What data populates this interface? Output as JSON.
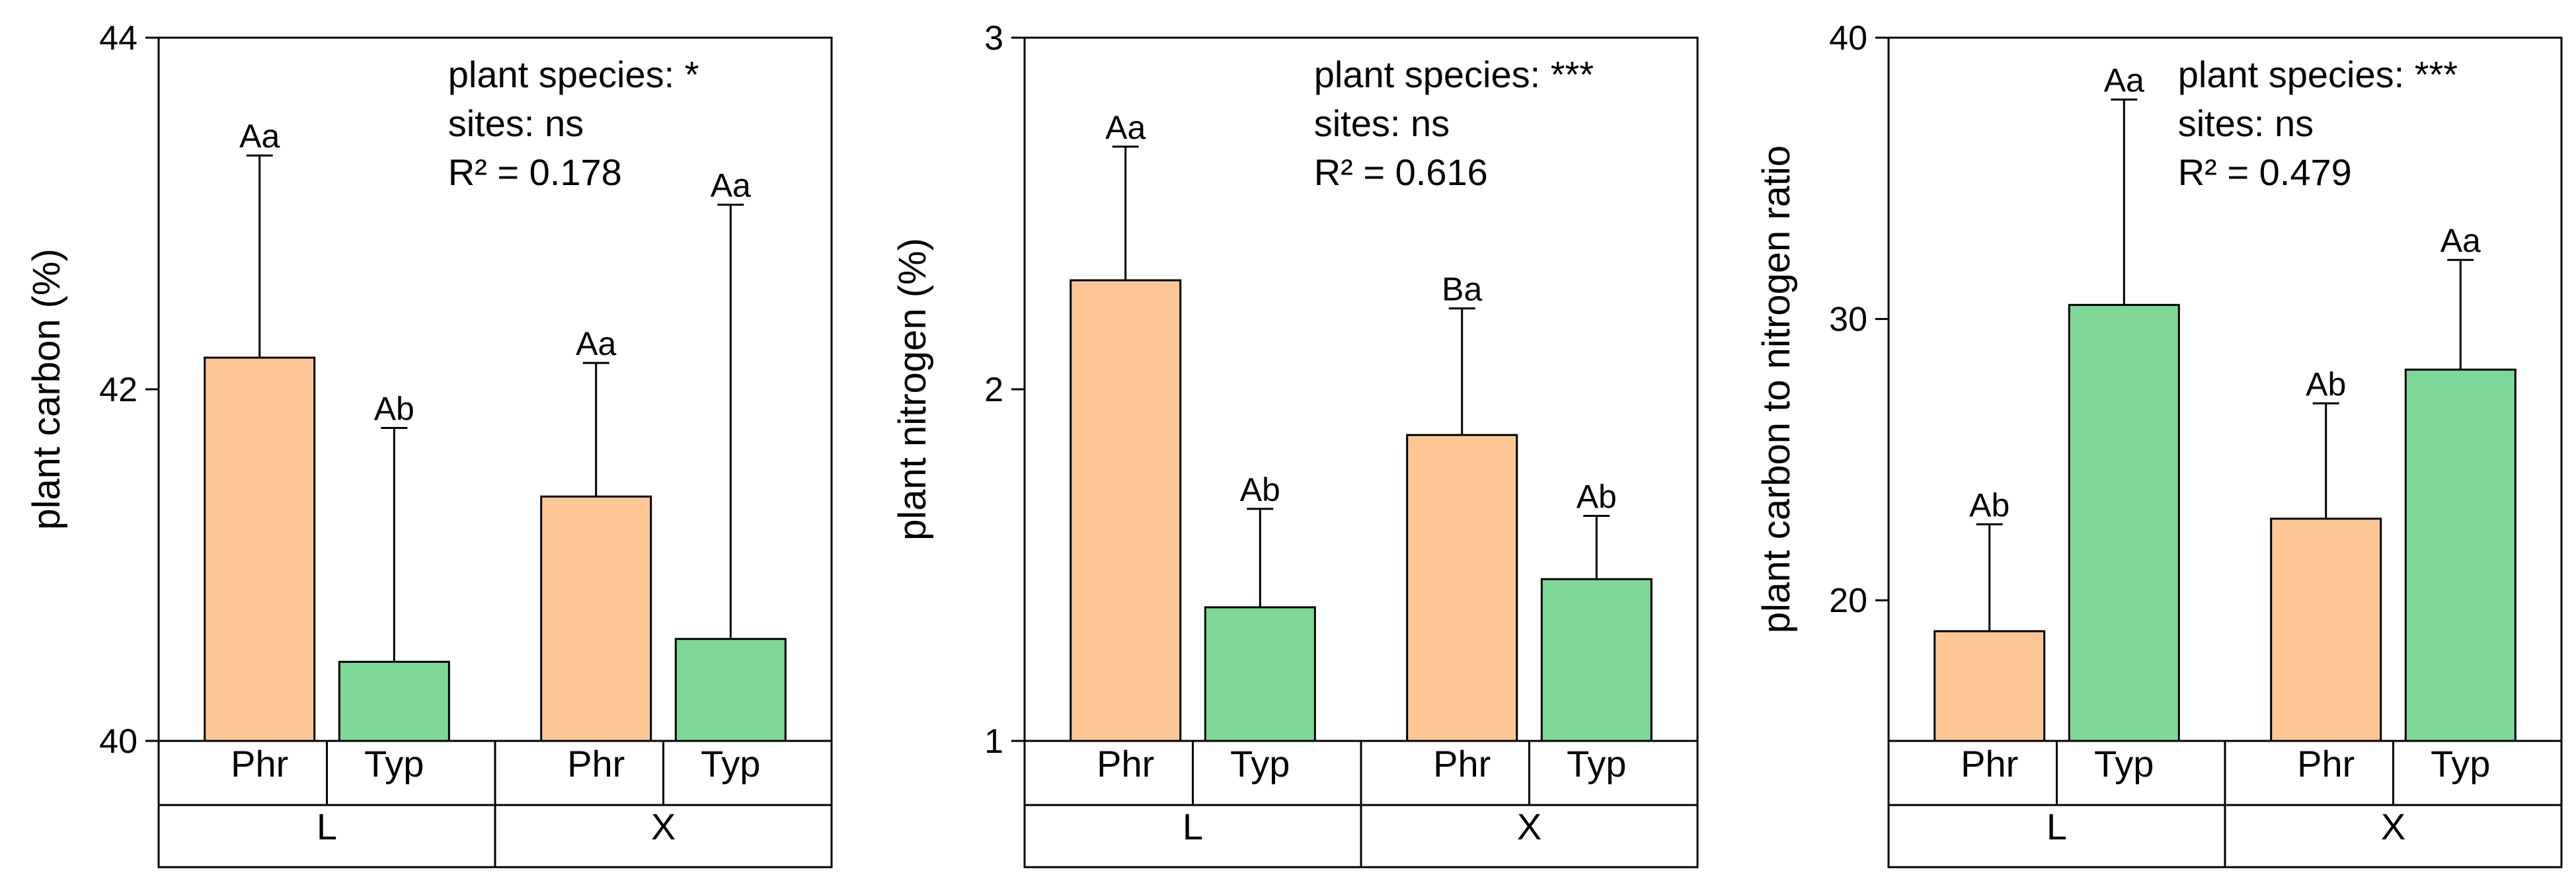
{
  "chart_data": [
    {
      "type": "bar",
      "ylabel": "plant carbon (%)",
      "ylim": [
        40,
        44
      ],
      "yticks": [
        40,
        42,
        44
      ],
      "groups": [
        "L",
        "X"
      ],
      "species": [
        "Phr",
        "Typ"
      ],
      "bars": [
        {
          "site": "L",
          "species": "Phr",
          "value": 42.18,
          "err": 1.15,
          "label": "Aa"
        },
        {
          "site": "L",
          "species": "Typ",
          "value": 40.45,
          "err": 1.33,
          "label": "Ab"
        },
        {
          "site": "X",
          "species": "Phr",
          "value": 41.39,
          "err": 0.76,
          "label": "Aa"
        },
        {
          "site": "X",
          "species": "Typ",
          "value": 40.58,
          "err": 2.47,
          "label": "Aa"
        }
      ],
      "annotation": [
        "plant species: *",
        "sites: ns",
        "R² = 0.178"
      ]
    },
    {
      "type": "bar",
      "ylabel": "plant nitrogen (%)",
      "ylim": [
        1,
        3
      ],
      "yticks": [
        1,
        2,
        3
      ],
      "groups": [
        "L",
        "X"
      ],
      "species": [
        "Phr",
        "Typ"
      ],
      "bars": [
        {
          "site": "L",
          "species": "Phr",
          "value": 2.31,
          "err": 0.38,
          "label": "Aa"
        },
        {
          "site": "L",
          "species": "Typ",
          "value": 1.38,
          "err": 0.28,
          "label": "Ab"
        },
        {
          "site": "X",
          "species": "Phr",
          "value": 1.87,
          "err": 0.36,
          "label": "Ba"
        },
        {
          "site": "X",
          "species": "Typ",
          "value": 1.46,
          "err": 0.18,
          "label": "Ab"
        }
      ],
      "annotation": [
        "plant species: ***",
        "sites: ns",
        "R² = 0.616"
      ]
    },
    {
      "type": "bar",
      "ylabel": "plant carbon to nitrogen ratio",
      "ylim": [
        15,
        40
      ],
      "yticks": [
        20,
        30,
        40
      ],
      "groups": [
        "L",
        "X"
      ],
      "species": [
        "Phr",
        "Typ"
      ],
      "bars": [
        {
          "site": "L",
          "species": "Phr",
          "value": 18.9,
          "err": 3.8,
          "label": "Ab"
        },
        {
          "site": "L",
          "species": "Typ",
          "value": 30.5,
          "err": 7.3,
          "label": "Aa"
        },
        {
          "site": "X",
          "species": "Phr",
          "value": 22.9,
          "err": 4.1,
          "label": "Ab"
        },
        {
          "site": "X",
          "species": "Typ",
          "value": 28.2,
          "err": 3.9,
          "label": "Aa"
        }
      ],
      "annotation": [
        "plant species: ***",
        "sites: ns",
        "R² = 0.479"
      ]
    }
  ],
  "colors": {
    "Phr": "#fcc795",
    "Typ": "#7ed898"
  }
}
